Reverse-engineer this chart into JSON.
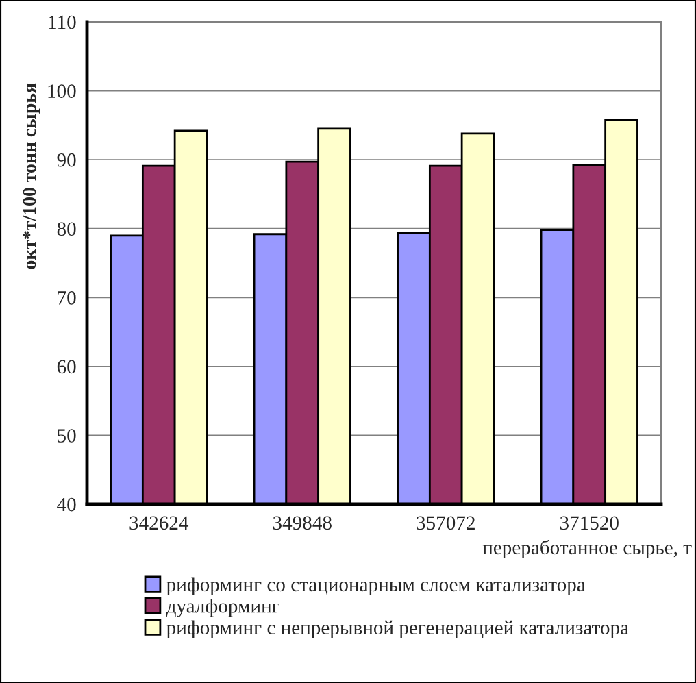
{
  "chart_data": {
    "type": "bar",
    "ylabel": "окт*т/100 тонн сырья",
    "xlabel": "переработанное сырье, т",
    "categories": [
      "342624",
      "349848",
      "357072",
      "371520"
    ],
    "series": [
      {
        "name": "риформинг со стационарным слоем катализатора",
        "color": "#9999ff",
        "values": [
          79.0,
          79.2,
          79.4,
          79.8
        ]
      },
      {
        "name": "дуалформинг",
        "color": "#993366",
        "values": [
          89.1,
          89.7,
          89.1,
          89.2
        ]
      },
      {
        "name": "риформинг с непрерывной регенерацией катализатора",
        "color": "#ffffcc",
        "values": [
          94.2,
          94.5,
          93.8,
          95.8
        ]
      }
    ],
    "ylim": [
      40,
      110
    ],
    "yticks": [
      40,
      50,
      60,
      70,
      80,
      90,
      100,
      110
    ],
    "grid": "y",
    "legend": "bottom"
  }
}
